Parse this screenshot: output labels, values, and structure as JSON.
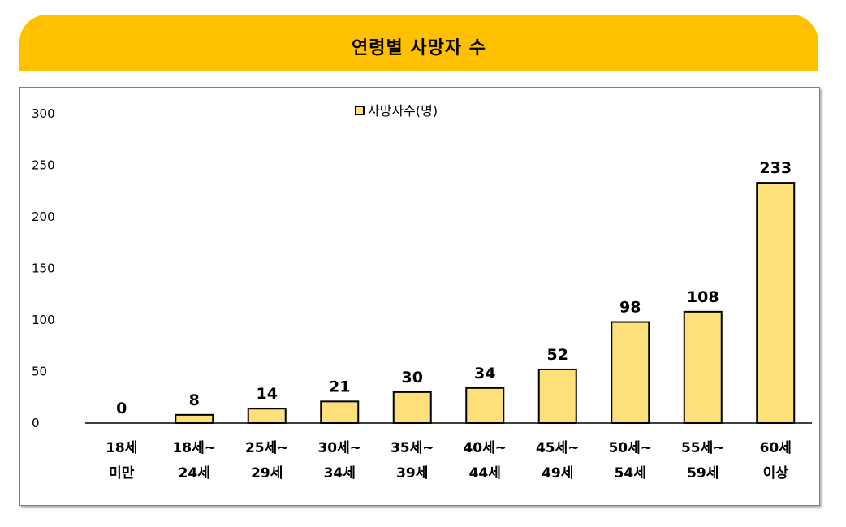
{
  "header": {
    "title": "연령별 사망자 수"
  },
  "colors": {
    "header": "#FFC000",
    "bar_fill": "#FDE07A",
    "bar_stroke": "#000000"
  },
  "chart_data": {
    "type": "bar",
    "title": "",
    "legend": {
      "label": "사망자수(명)",
      "placement": "top-center"
    },
    "categories": [
      [
        "18세",
        "미만"
      ],
      [
        "18세~",
        "24세"
      ],
      [
        "25세~",
        "29세"
      ],
      [
        "30세~",
        "34세"
      ],
      [
        "35세~",
        "39세"
      ],
      [
        "40세~",
        "44세"
      ],
      [
        "45세~",
        "49세"
      ],
      [
        "50세~",
        "54세"
      ],
      [
        "55세~",
        "59세"
      ],
      [
        "60세",
        "이상"
      ]
    ],
    "series": [
      {
        "name": "사망자수(명)",
        "values": [
          0,
          8,
          14,
          21,
          30,
          34,
          52,
          98,
          108,
          233
        ]
      }
    ],
    "ylim": [
      0,
      300
    ],
    "yticks": [
      0,
      50,
      100,
      150,
      200,
      250,
      300
    ],
    "grid": false
  }
}
